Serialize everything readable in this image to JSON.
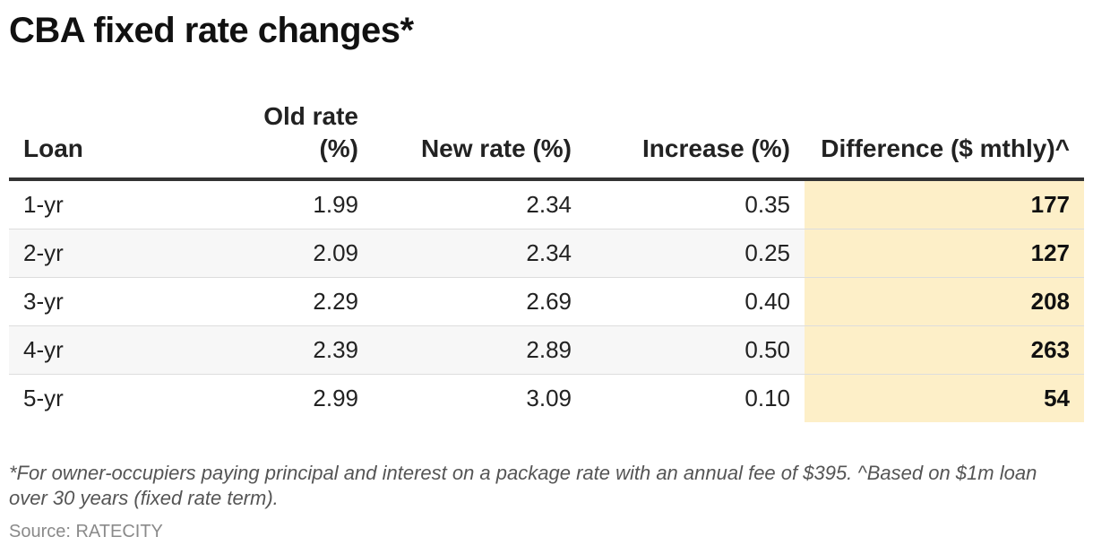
{
  "title": "CBA fixed rate changes*",
  "chart_data": {
    "type": "table",
    "columns": [
      "Loan",
      "Old rate (%)",
      "New rate (%)",
      "Increase (%)",
      "Difference ($ mthly)^"
    ],
    "rows": [
      [
        "1-yr",
        "1.99",
        "2.34",
        "0.35",
        "177"
      ],
      [
        "2-yr",
        "2.09",
        "2.34",
        "0.25",
        "127"
      ],
      [
        "3-yr",
        "2.29",
        "2.69",
        "0.40",
        "208"
      ],
      [
        "4-yr",
        "2.39",
        "2.89",
        "0.50",
        "263"
      ],
      [
        "5-yr",
        "2.99",
        "3.09",
        "0.10",
        "54"
      ]
    ],
    "highlight_column": "Difference ($ mthly)^",
    "highlight_color": "#fdefc8"
  },
  "footnote": "*For owner-occupiers paying principal and interest on a package rate with an annual fee of $395. ^Based on $1m loan over 30 years (fixed rate term).",
  "source": "Source: RATECITY"
}
